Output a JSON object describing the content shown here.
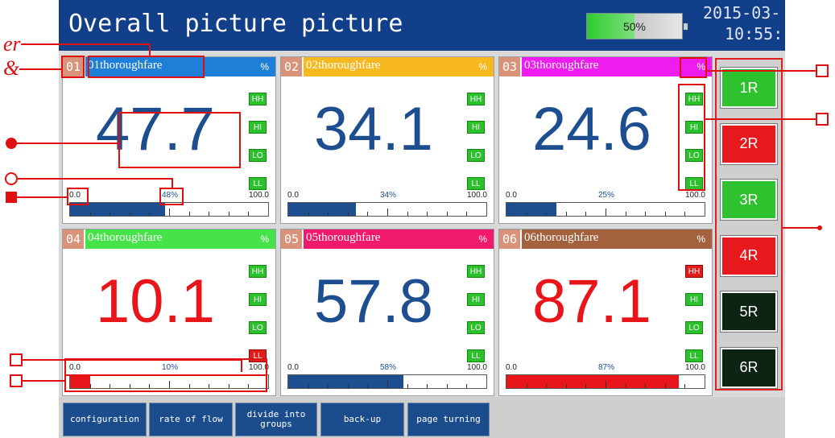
{
  "header": {
    "title": "Overall picture picture",
    "battery": {
      "label": "50%",
      "value": 50
    },
    "date": "2015-03-",
    "time": "10:55:"
  },
  "channels": [
    {
      "number": "01",
      "name": "01thoroughfare",
      "unit": "%",
      "value": "47.7",
      "min": "0.0",
      "max": "100.0",
      "percent": 48,
      "percent_label": "48%",
      "header_color": "#1e7fd8",
      "value_color": "#1d4e8f",
      "bar_color": "#1d4e8f",
      "alarms": [
        {
          "label": "HH",
          "state": "off"
        },
        {
          "label": "HI",
          "state": "off"
        },
        {
          "label": "LO",
          "state": "off"
        },
        {
          "label": "LL",
          "state": "off"
        }
      ]
    },
    {
      "number": "02",
      "name": "02thoroughfare",
      "unit": "%",
      "value": "34.1",
      "min": "0.0",
      "max": "100.0",
      "percent": 34,
      "percent_label": "34%",
      "header_color": "#f7b91f",
      "value_color": "#1d4e8f",
      "bar_color": "#1d4e8f",
      "alarms": [
        {
          "label": "HH",
          "state": "off"
        },
        {
          "label": "HI",
          "state": "off"
        },
        {
          "label": "LO",
          "state": "off"
        },
        {
          "label": "LL",
          "state": "off"
        }
      ]
    },
    {
      "number": "03",
      "name": "03thoroughfare",
      "unit": "%",
      "value": "24.6",
      "min": "0.0",
      "max": "100.0",
      "percent": 25,
      "percent_label": "25%",
      "header_color": "#ee1cee",
      "value_color": "#1d4e8f",
      "bar_color": "#1d4e8f",
      "alarms": [
        {
          "label": "HH",
          "state": "off"
        },
        {
          "label": "HI",
          "state": "off"
        },
        {
          "label": "LO",
          "state": "off"
        },
        {
          "label": "LL",
          "state": "off"
        }
      ]
    },
    {
      "number": "04",
      "name": "04thoroughfare",
      "unit": "%",
      "value": "10.1",
      "min": "0.0",
      "max": "100.0",
      "percent": 10,
      "percent_label": "10%",
      "header_color": "#45e24a",
      "value_color": "#e8161b",
      "bar_color": "#e8161b",
      "alarms": [
        {
          "label": "HH",
          "state": "off"
        },
        {
          "label": "HI",
          "state": "off"
        },
        {
          "label": "LO",
          "state": "off"
        },
        {
          "label": "LL",
          "state": "alarm"
        }
      ]
    },
    {
      "number": "05",
      "name": "05thoroughfare",
      "unit": "%",
      "value": "57.8",
      "min": "0.0",
      "max": "100.0",
      "percent": 58,
      "percent_label": "58%",
      "header_color": "#f0196b",
      "value_color": "#1d4e8f",
      "bar_color": "#1d4e8f",
      "alarms": [
        {
          "label": "HH",
          "state": "off"
        },
        {
          "label": "HI",
          "state": "off"
        },
        {
          "label": "LO",
          "state": "off"
        },
        {
          "label": "LL",
          "state": "off"
        }
      ]
    },
    {
      "number": "06",
      "name": "06thoroughfare",
      "unit": "%",
      "value": "87.1",
      "min": "0.0",
      "max": "100.0",
      "percent": 87,
      "percent_label": "87%",
      "header_color": "#a3613d",
      "value_color": "#e8161b",
      "bar_color": "#e8161b",
      "alarms": [
        {
          "label": "HH",
          "state": "alarm"
        },
        {
          "label": "HI",
          "state": "off"
        },
        {
          "label": "LO",
          "state": "off"
        },
        {
          "label": "LL",
          "state": "off"
        }
      ]
    }
  ],
  "relays": [
    {
      "label": "1R",
      "state": "on"
    },
    {
      "label": "2R",
      "state": "alarm"
    },
    {
      "label": "3R",
      "state": "on"
    },
    {
      "label": "4R",
      "state": "alarm"
    },
    {
      "label": "5R",
      "state": "off"
    },
    {
      "label": "6R",
      "state": "off"
    }
  ],
  "toolbar": [
    "configuration",
    "rate of flow",
    "divide into groups",
    "back-up",
    "page turning"
  ],
  "annotations": [
    "er",
    "&"
  ]
}
